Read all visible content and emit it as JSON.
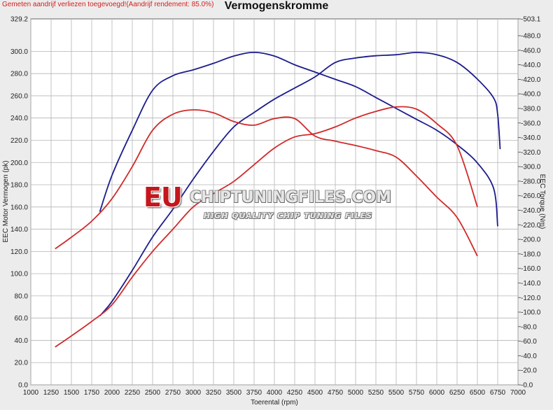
{
  "header": {
    "warning": "Gemeten aandrijf verliezen toegevoegd!(Aandrijf rendement: 85.0%)",
    "title": "Vermogenskromme"
  },
  "watermark": {
    "logo": "EU",
    "brand": "CHIPTUNINGFILES.COM",
    "tagline": "HIGH QUALITY CHIP TUNING FILES"
  },
  "colors": {
    "tuned": "#1c1c8c",
    "stock": "#d02a2a",
    "grid": "#aaaaaa",
    "plot_bg": "#ffffff",
    "page_bg": "#ececec"
  },
  "chart_data": {
    "type": "line",
    "title": "Vermogenskromme",
    "xlabel": "Toerental (rpm)",
    "ylabel": "EEC Motor Vermogen (pk)",
    "y2label": "EEC Torque (Nm)",
    "xlim": [
      1000,
      7000
    ],
    "ylim": [
      0,
      329.2
    ],
    "y2lim": [
      0,
      503.1
    ],
    "grid": true,
    "x_ticks": [
      "1000",
      "1250",
      "1500",
      "1750",
      "2000",
      "2250",
      "2500",
      "2750",
      "3000",
      "3250",
      "3500",
      "3750",
      "4000",
      "4250",
      "4500",
      "4750",
      "5000",
      "5250",
      "5500",
      "5750",
      "6000",
      "6250",
      "6500",
      "6750",
      "7000"
    ],
    "y_ticks": [
      "0.0",
      "20.0",
      "40.0",
      "60.0",
      "80.0",
      "100.0",
      "120.0",
      "140.0",
      "160.0",
      "180.0",
      "200.0",
      "220.0",
      "240.0",
      "260.0",
      "280.0",
      "300.0",
      "329.2"
    ],
    "y2_ticks": [
      "0.0",
      "20.0",
      "40.0",
      "60.0",
      "80.0",
      "100.0",
      "120.0",
      "140.0",
      "160.0",
      "180.0",
      "200.0",
      "220.0",
      "240.0",
      "260.0",
      "280.0",
      "300.0",
      "320.0",
      "340.0",
      "360.0",
      "380.0",
      "400.0",
      "420.0",
      "440.0",
      "460.0",
      "480.0",
      "503.1"
    ],
    "series": [
      {
        "color": "#1c1c8c",
        "axis": "y2",
        "x": [
          1850,
          2000,
          2250,
          2500,
          2750,
          3000,
          3250,
          3500,
          3750,
          4000,
          4250,
          4500,
          4750,
          5000,
          5250,
          5500,
          5750,
          6000,
          6250,
          6500,
          6700,
          6750
        ],
        "values": [
          238,
          288,
          350,
          405,
          425,
          433,
          442,
          452,
          457,
          452,
          440,
          430,
          420,
          410,
          395,
          380,
          365,
          350,
          330,
          305,
          270,
          218
        ]
      },
      {
        "color": "#1c1c8c",
        "axis": "y",
        "x": [
          1850,
          2000,
          2250,
          2500,
          2750,
          3000,
          3250,
          3500,
          3750,
          4000,
          4250,
          4500,
          4750,
          5000,
          5250,
          5500,
          5750,
          6000,
          6250,
          6500,
          6700,
          6750,
          6780
        ],
        "values": [
          62,
          75,
          103,
          133,
          158,
          185,
          210,
          232,
          245,
          257,
          267,
          277,
          290,
          294,
          296,
          297,
          299,
          297,
          290,
          275,
          258,
          243,
          212
        ]
      },
      {
        "color": "#d02a2a",
        "axis": "y2",
        "x": [
          1300,
          1500,
          1750,
          2000,
          2250,
          2500,
          2750,
          3000,
          3250,
          3500,
          3750,
          4000,
          4250,
          4500,
          4750,
          5000,
          5250,
          5500,
          5750,
          6000,
          6250,
          6500
        ],
        "values": [
          187,
          203,
          225,
          256,
          300,
          350,
          372,
          378,
          374,
          362,
          357,
          366,
          366,
          342,
          335,
          329,
          322,
          313,
          287,
          258,
          230,
          177
        ]
      },
      {
        "color": "#d02a2a",
        "axis": "y",
        "x": [
          1300,
          1500,
          1750,
          2000,
          2250,
          2500,
          2750,
          3000,
          3250,
          3500,
          3750,
          4000,
          4250,
          4500,
          4750,
          5000,
          5250,
          5500,
          5750,
          6000,
          6250,
          6500
        ],
        "values": [
          34,
          44,
          57,
          72,
          97,
          120,
          140,
          160,
          172,
          183,
          198,
          213,
          223,
          226,
          232,
          240,
          246,
          250,
          248,
          235,
          215,
          160
        ]
      }
    ]
  }
}
